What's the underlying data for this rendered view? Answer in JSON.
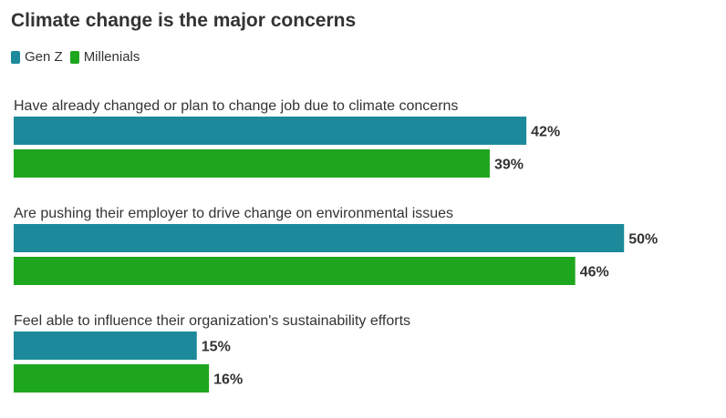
{
  "chart_data": {
    "type": "bar",
    "orientation": "horizontal",
    "title": "Climate change is the major concerns",
    "legend_position": "top-left",
    "value_suffix": "%",
    "x_range": [
      0,
      52
    ],
    "categories": [
      "Have already changed or plan to change job due to climate concerns",
      "Are pushing their employer to drive change on environmental issues",
      "Feel able to influence their organization's sustainability efforts"
    ],
    "series": [
      {
        "name": "Gen Z",
        "color": "#1c8a9a",
        "values": [
          42,
          50,
          15
        ]
      },
      {
        "name": "Millenials",
        "color": "#1fa61f",
        "values": [
          39,
          46,
          16
        ]
      }
    ],
    "value_labels": [
      [
        "42%",
        "50%",
        "15%"
      ],
      [
        "39%",
        "46%",
        "16%"
      ]
    ]
  }
}
